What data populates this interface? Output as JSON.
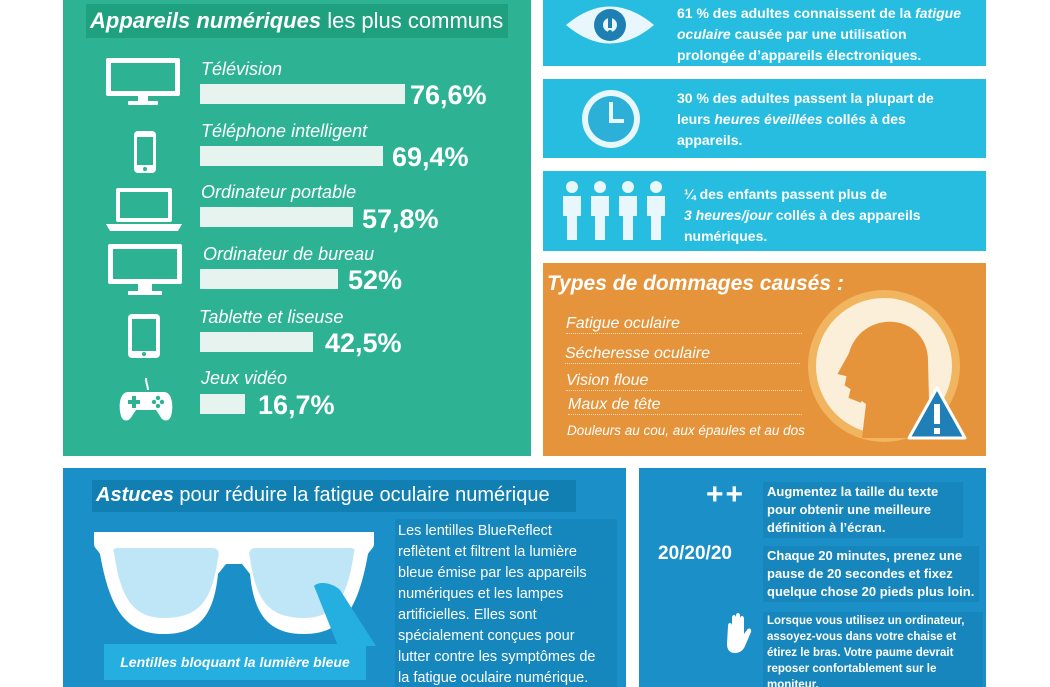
{
  "devices": {
    "title_bold": "Appareils numériques",
    "title_rest": " les plus communs",
    "items": [
      {
        "label": "Télévision",
        "value": "76,6%",
        "percent": 76.6,
        "icon": "tv-icon"
      },
      {
        "label": "Téléphone intelligent",
        "value": "69,4%",
        "percent": 69.4,
        "icon": "smartphone-icon"
      },
      {
        "label": "Ordinateur portable",
        "value": "57,8%",
        "percent": 57.8,
        "icon": "laptop-icon"
      },
      {
        "label": "Ordinateur de bureau",
        "value": "52%",
        "percent": 52,
        "icon": "desktop-monitor-icon"
      },
      {
        "label": "Tablette et liseuse",
        "value": "42,5%",
        "percent": 42.5,
        "icon": "tablet-icon"
      },
      {
        "label": "Jeux vidéo",
        "value": "16,7%",
        "percent": 16.7,
        "icon": "gamepad-icon"
      }
    ]
  },
  "stats": [
    {
      "icon": "eye-icon",
      "line1_pre": "61 % des adultes connaissent de la ",
      "line1_em": "fatigue",
      "line2_em": "oculaire",
      "line2_post": " causée par une utilisation",
      "line3": "prolongée d’appareils électroniques."
    },
    {
      "icon": "clock-icon",
      "line1": "30 % des adultes passent la plupart de",
      "line2_pre": "leurs ",
      "line2_em": "heures éveillées",
      "line2_post": " collés à des",
      "line3": "appareils."
    },
    {
      "icon": "children-icon",
      "line1": "¼ des enfants passent plus de",
      "line2_em": "3 heures/jour",
      "line2_post": " collés à des appareils",
      "line3": "numériques."
    }
  ],
  "damage": {
    "title": "Types de dommages causés :",
    "items": [
      "Fatigue oculaire",
      "Sécheresse oculaire",
      "Vision floue",
      "Maux de tête",
      "Douleurs au cou, aux épaules et au dos"
    ]
  },
  "tips": {
    "title_bold": "Astuces",
    "title_rest": " pour réduire la fatigue oculaire numérique",
    "body_lines": [
      "Les lentilles BlueReflect",
      "reflètent et filtrent la lumière",
      "bleue émise par les appareils",
      "numériques et les lampes",
      "artificielles. Elles sont",
      "spécialement conçues pour",
      "lutter contre les symptômes de",
      "la fatigue oculaire numérique."
    ],
    "lens_label": "Lentilles bloquant la lumière bleue"
  },
  "advice": {
    "plus_symbol": "++",
    "rule": "20/20/20",
    "text_size": [
      "Augmentez la taille du texte",
      "pour obtenir une meilleure",
      "définition à l’écran."
    ],
    "text_rule": [
      "Chaque 20 minutes, prenez une",
      "pause de 20 secondes et fixez",
      "quelque chose 20 pieds plus loin."
    ],
    "text_arm": [
      "Lorsque vous utilisez un ordinateur,",
      "assoyez-vous dans votre chaise et",
      "étirez le bras. Votre paume devrait",
      "reposer confortablement sur le",
      "moniteur."
    ]
  },
  "colors": {
    "green": "#2db394",
    "cyan": "#27bde0",
    "orange": "#e5943b",
    "blue": "#1b8fc7"
  }
}
